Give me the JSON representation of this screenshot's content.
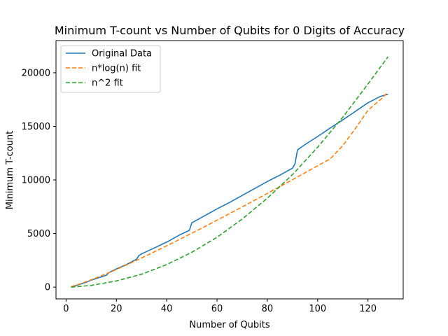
{
  "chart_data": {
    "type": "line",
    "title": "Minimum T-count vs Number of Qubits for 0 Digits of Accuracy",
    "xlabel": "Number of Qubits",
    "ylabel": "Minimum T-count",
    "xlim": [
      -4,
      134
    ],
    "ylim": [
      -1100,
      23000
    ],
    "xticks": [
      0,
      20,
      40,
      60,
      80,
      100,
      120
    ],
    "yticks": [
      0,
      5000,
      10000,
      15000,
      20000
    ],
    "grid": false,
    "legend_position": "top-left",
    "series": [
      {
        "name": "Original Data",
        "color": "#1f77b4",
        "style": "solid",
        "x": [
          2,
          4,
          8,
          10,
          16,
          17,
          20,
          24,
          28,
          29,
          30,
          35,
          40,
          45,
          49,
          50,
          55,
          60,
          65,
          70,
          75,
          80,
          85,
          90,
          91,
          92,
          95,
          100,
          105,
          110,
          115,
          120,
          125,
          128
        ],
        "y": [
          0,
          150,
          450,
          650,
          1100,
          1350,
          1700,
          2100,
          2600,
          2950,
          3100,
          3650,
          4200,
          4850,
          5300,
          6000,
          6650,
          7300,
          7900,
          8550,
          9200,
          9850,
          10450,
          11100,
          11500,
          12800,
          13300,
          14050,
          14850,
          15600,
          16400,
          17200,
          17800,
          18000
        ]
      },
      {
        "name": "n*log(n) fit",
        "color": "#ff7f0e",
        "style": "dashed",
        "x": [
          2,
          5,
          10,
          15,
          20,
          25,
          30,
          35,
          40,
          45,
          50,
          55,
          60,
          65,
          70,
          75,
          80,
          85,
          90,
          95,
          100,
          105,
          110,
          115,
          120,
          125,
          128
        ],
        "y": [
          50,
          250,
          680,
          1150,
          1650,
          2170,
          2720,
          3280,
          3850,
          4440,
          5030,
          5630,
          6240,
          6860,
          7480,
          8110,
          8740,
          9380,
          10020,
          10670,
          11320,
          11970,
          13200,
          14800,
          16500,
          17500,
          18200
        ]
      },
      {
        "name": "n^2 fit",
        "color": "#2ca02c",
        "style": "dashed",
        "x": [
          2,
          10,
          20,
          30,
          40,
          50,
          60,
          70,
          80,
          90,
          100,
          110,
          120,
          128
        ],
        "y": [
          0,
          160,
          580,
          1200,
          2100,
          3250,
          4650,
          6350,
          8300,
          10500,
          13050,
          15850,
          18950,
          21500
        ]
      }
    ]
  }
}
